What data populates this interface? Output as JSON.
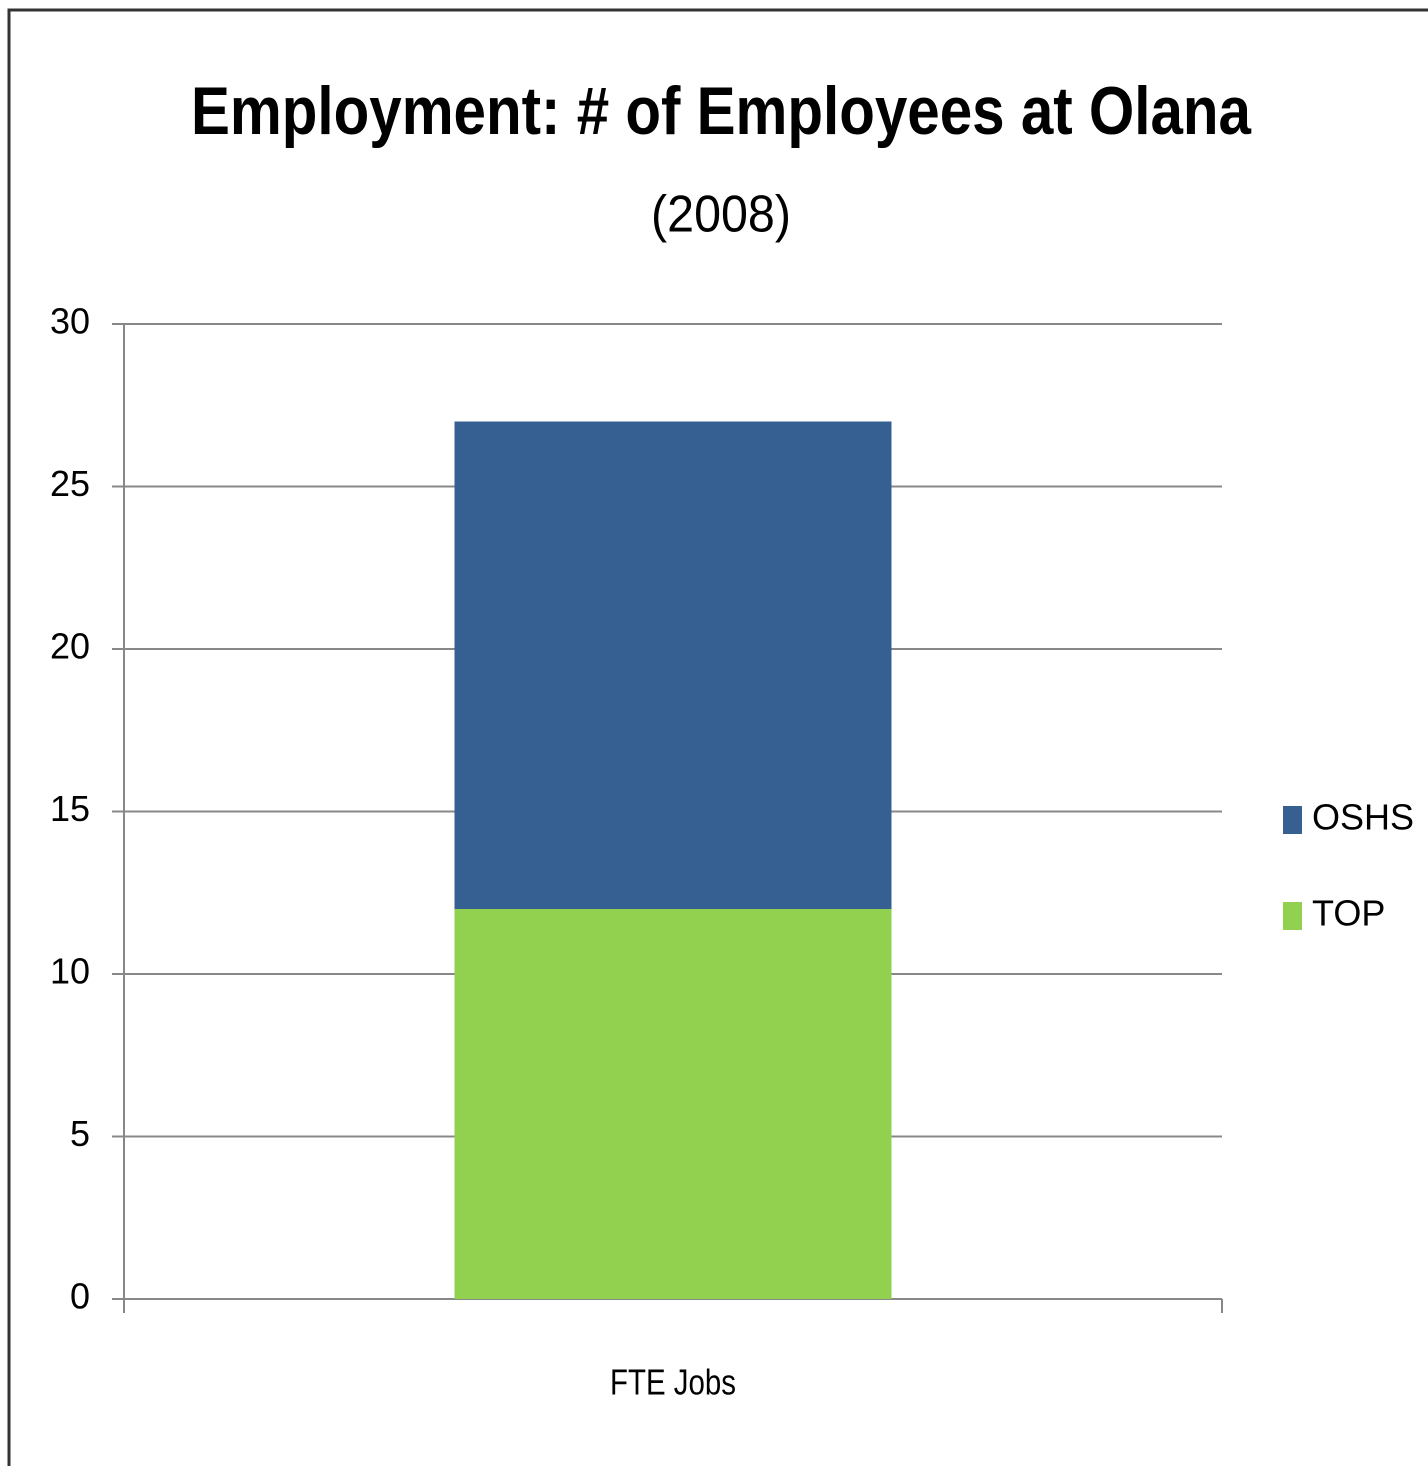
{
  "chart_data": {
    "type": "stacked_bar",
    "title": "Employment: # of Employees at Olana",
    "subtitle": "(2008)",
    "categories": [
      "FTE Jobs"
    ],
    "series": [
      {
        "name": "TOP",
        "color": "#92d050",
        "values": [
          12
        ]
      },
      {
        "name": "OSHS",
        "color": "#376092",
        "values": [
          15
        ]
      }
    ],
    "ylim": [
      0,
      30
    ],
    "yticks": [
      0,
      5,
      10,
      15,
      20,
      25,
      30
    ],
    "grid": true,
    "legend": "right"
  }
}
